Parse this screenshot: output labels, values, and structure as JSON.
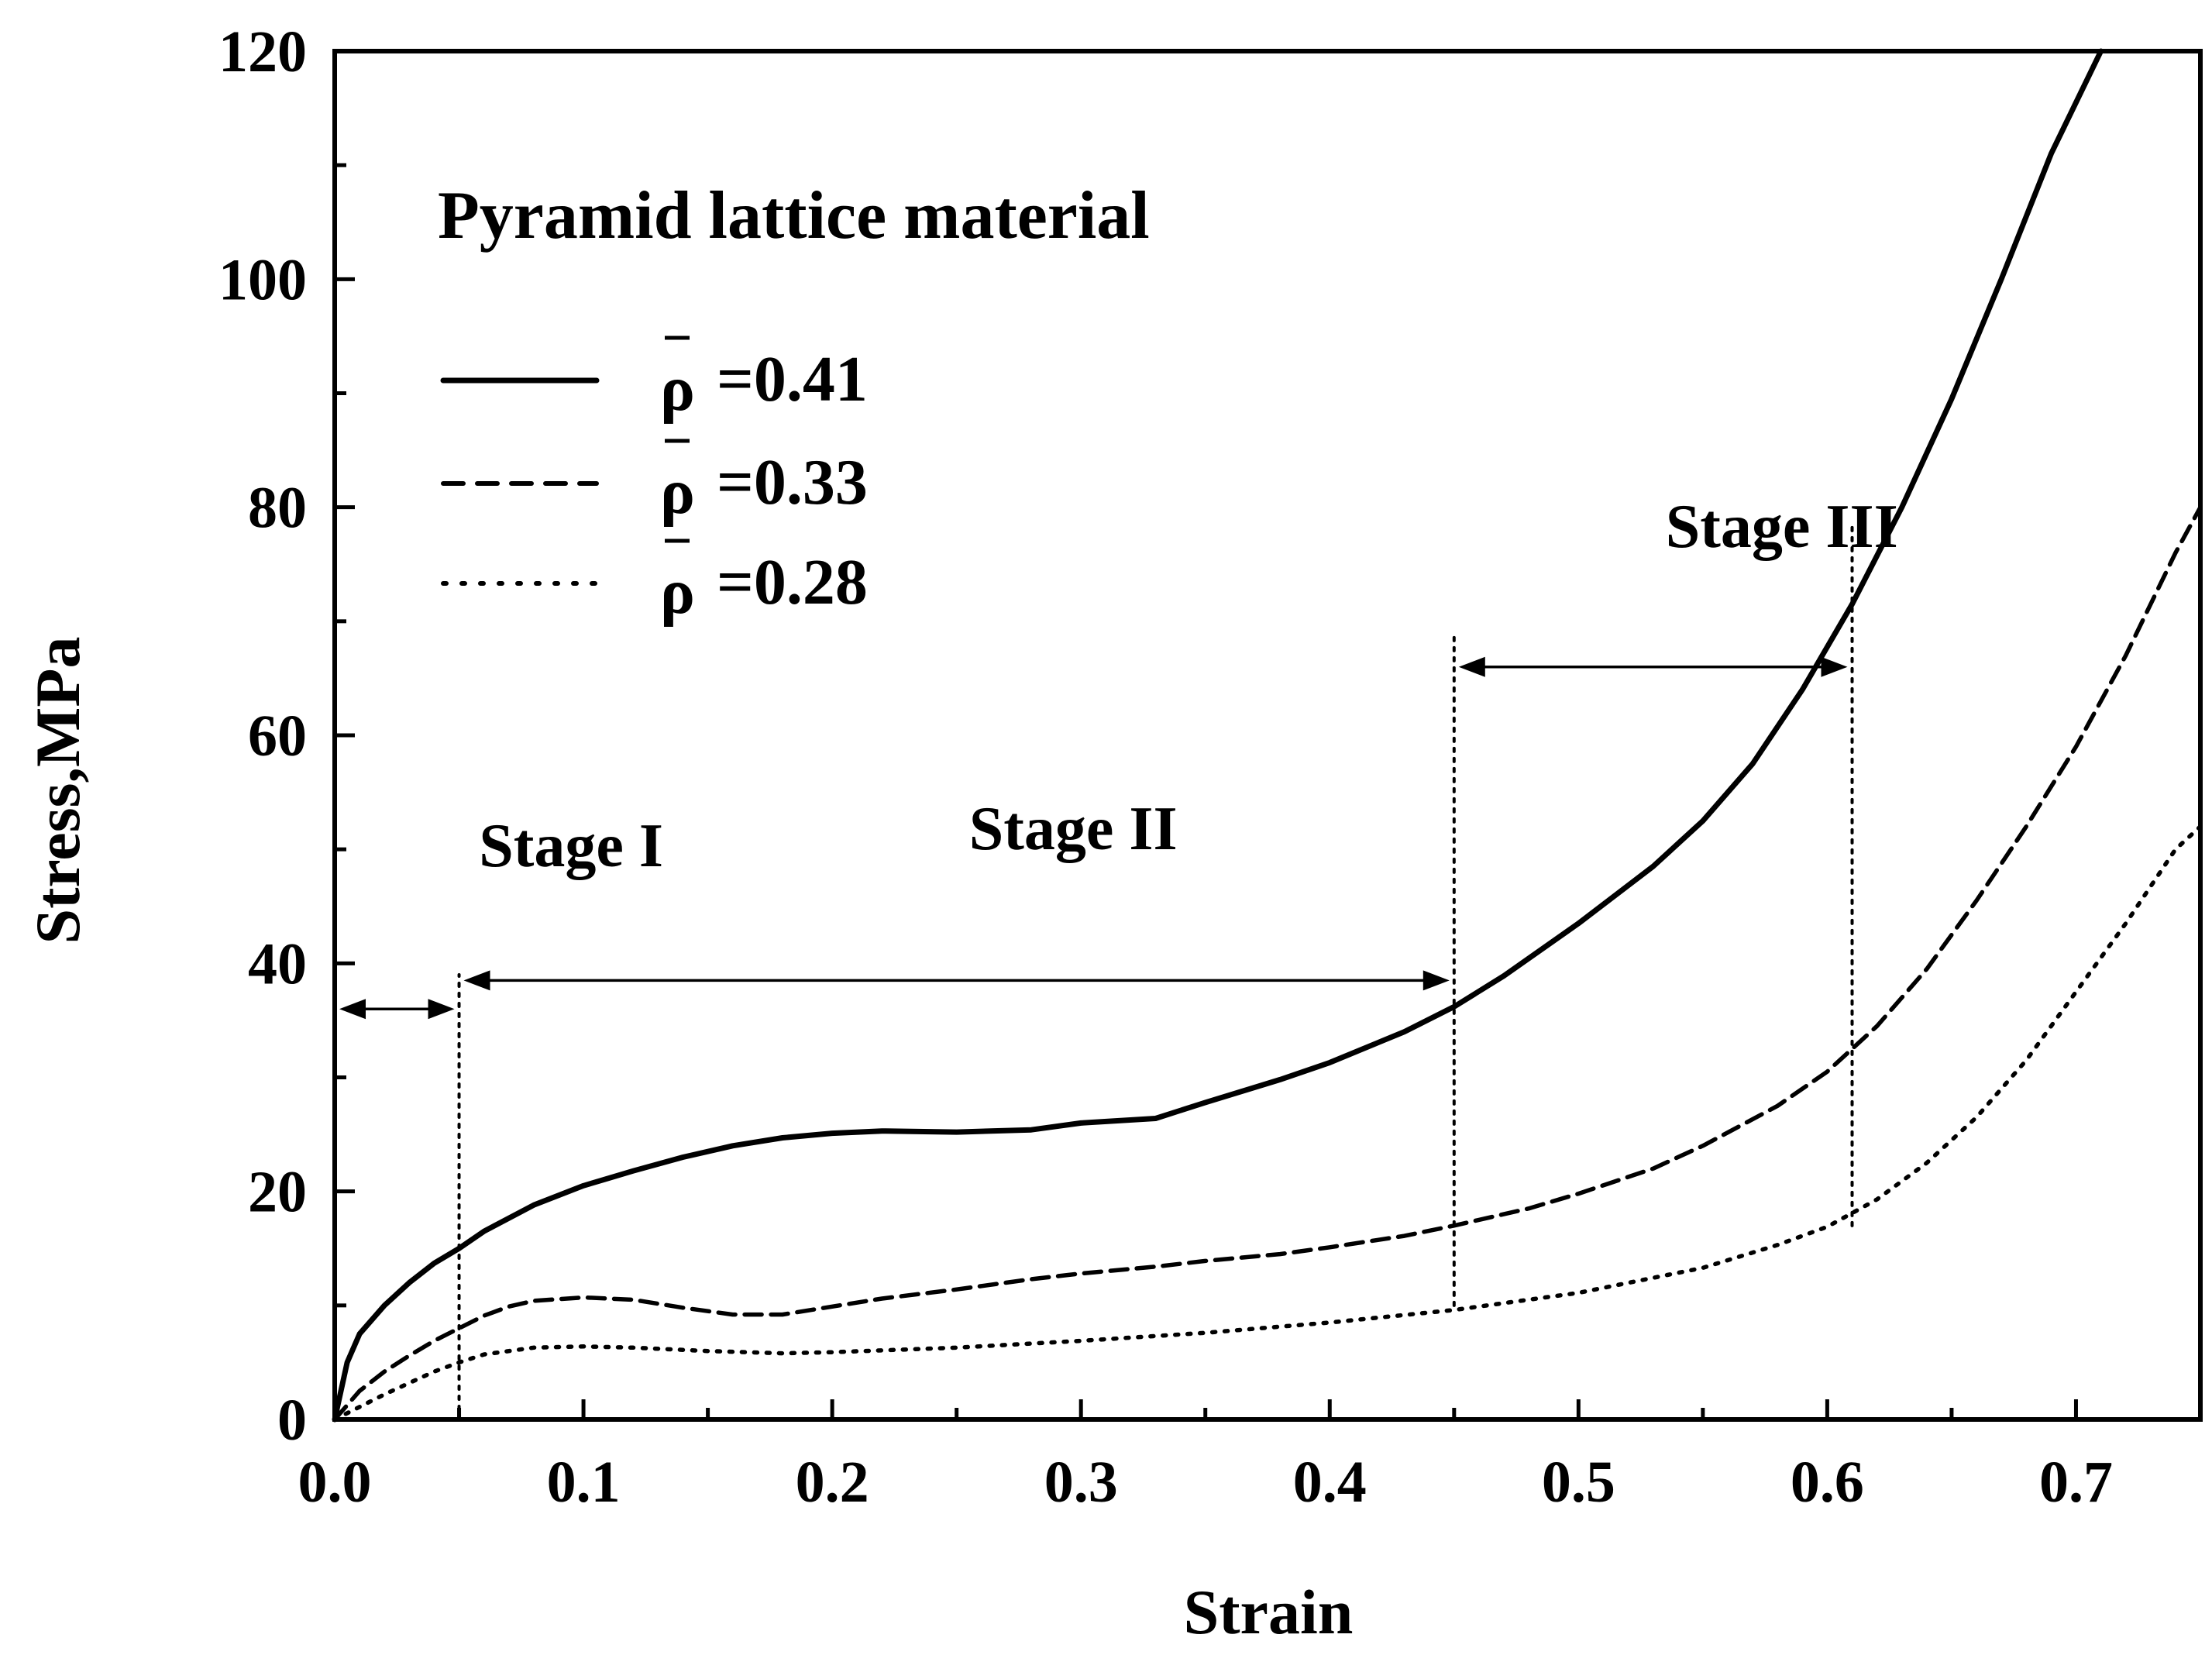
{
  "chart_data": {
    "type": "line",
    "title": "Pyramid  lattice material",
    "xlabel": "Strain",
    "ylabel": "Stress,MPa",
    "xlim": [
      0,
      0.75
    ],
    "ylim": [
      0,
      120
    ],
    "xticks": [
      0.0,
      0.1,
      0.2,
      0.3,
      0.4,
      0.5,
      0.6,
      0.7
    ],
    "xtick_labels": [
      "0.0",
      "0.1",
      "0.2",
      "0.3",
      "0.4",
      "0.5",
      "0.6",
      "0.7"
    ],
    "xminor_step": 0.05,
    "yticks": [
      0,
      20,
      40,
      60,
      80,
      100,
      120
    ],
    "ytick_labels": [
      "0",
      "20",
      "40",
      "60",
      "80",
      "100",
      "120"
    ],
    "yminor_step": 10,
    "legend_position": "upper-left",
    "series": [
      {
        "name": "ρ̄ =0.41",
        "legend_symbol": "ρ",
        "legend_value": "=0.41",
        "style": "solid",
        "points": [
          [
            0,
            0
          ],
          [
            0.005,
            5
          ],
          [
            0.01,
            7.5
          ],
          [
            0.02,
            10
          ],
          [
            0.03,
            12
          ],
          [
            0.04,
            13.7
          ],
          [
            0.05,
            15
          ],
          [
            0.06,
            16.5
          ],
          [
            0.08,
            18.8
          ],
          [
            0.1,
            20.5
          ],
          [
            0.12,
            21.8
          ],
          [
            0.14,
            23
          ],
          [
            0.16,
            24
          ],
          [
            0.18,
            24.7
          ],
          [
            0.2,
            25.1
          ],
          [
            0.22,
            25.3
          ],
          [
            0.25,
            25.2
          ],
          [
            0.28,
            25.4
          ],
          [
            0.3,
            26
          ],
          [
            0.33,
            26.4
          ],
          [
            0.35,
            27.8
          ],
          [
            0.38,
            29.8
          ],
          [
            0.4,
            31.3
          ],
          [
            0.43,
            34
          ],
          [
            0.45,
            36.2
          ],
          [
            0.47,
            38.9
          ],
          [
            0.5,
            43.5
          ],
          [
            0.53,
            48.5
          ],
          [
            0.55,
            52.5
          ],
          [
            0.57,
            57.5
          ],
          [
            0.59,
            64
          ],
          [
            0.61,
            71.5
          ],
          [
            0.63,
            80
          ],
          [
            0.65,
            89.5
          ],
          [
            0.67,
            100
          ],
          [
            0.69,
            111
          ],
          [
            0.71,
            120
          ]
        ]
      },
      {
        "name": "ρ̄ =0.33",
        "legend_symbol": "ρ",
        "legend_value": "=0.33",
        "style": "dashed",
        "points": [
          [
            0,
            0
          ],
          [
            0.01,
            2.5
          ],
          [
            0.02,
            4.2
          ],
          [
            0.03,
            5.6
          ],
          [
            0.04,
            6.9
          ],
          [
            0.05,
            8
          ],
          [
            0.06,
            9.1
          ],
          [
            0.07,
            9.9
          ],
          [
            0.08,
            10.4
          ],
          [
            0.1,
            10.7
          ],
          [
            0.12,
            10.5
          ],
          [
            0.14,
            9.8
          ],
          [
            0.16,
            9.2
          ],
          [
            0.18,
            9.2
          ],
          [
            0.2,
            9.9
          ],
          [
            0.22,
            10.6
          ],
          [
            0.25,
            11.4
          ],
          [
            0.28,
            12.3
          ],
          [
            0.3,
            12.8
          ],
          [
            0.33,
            13.4
          ],
          [
            0.35,
            13.9
          ],
          [
            0.38,
            14.5
          ],
          [
            0.4,
            15.1
          ],
          [
            0.43,
            16.1
          ],
          [
            0.45,
            17
          ],
          [
            0.48,
            18.5
          ],
          [
            0.5,
            19.8
          ],
          [
            0.53,
            22
          ],
          [
            0.55,
            24
          ],
          [
            0.58,
            27.5
          ],
          [
            0.6,
            30.5
          ],
          [
            0.62,
            34.5
          ],
          [
            0.64,
            39.5
          ],
          [
            0.66,
            45.5
          ],
          [
            0.68,
            52
          ],
          [
            0.7,
            59
          ],
          [
            0.72,
            67
          ],
          [
            0.74,
            76
          ],
          [
            0.75,
            80
          ]
        ]
      },
      {
        "name": "ρ̄ =0.28",
        "legend_symbol": "ρ",
        "legend_value": "=0.28",
        "style": "dotted",
        "points": [
          [
            0,
            0
          ],
          [
            0.02,
            2.2
          ],
          [
            0.04,
            4.2
          ],
          [
            0.05,
            5
          ],
          [
            0.06,
            5.7
          ],
          [
            0.08,
            6.3
          ],
          [
            0.1,
            6.4
          ],
          [
            0.12,
            6.3
          ],
          [
            0.15,
            6
          ],
          [
            0.18,
            5.8
          ],
          [
            0.2,
            5.9
          ],
          [
            0.25,
            6.3
          ],
          [
            0.3,
            6.9
          ],
          [
            0.35,
            7.6
          ],
          [
            0.4,
            8.5
          ],
          [
            0.45,
            9.6
          ],
          [
            0.5,
            11.1
          ],
          [
            0.55,
            13.3
          ],
          [
            0.58,
            15.3
          ],
          [
            0.6,
            16.9
          ],
          [
            0.62,
            19.3
          ],
          [
            0.64,
            22.5
          ],
          [
            0.66,
            26.5
          ],
          [
            0.68,
            31.5
          ],
          [
            0.7,
            37.5
          ],
          [
            0.72,
            43.5
          ],
          [
            0.74,
            50
          ],
          [
            0.75,
            52
          ]
        ]
      }
    ],
    "stage_boundaries": [
      0.05,
      0.45,
      0.61
    ],
    "annotations": [
      {
        "label": "Stage I",
        "x_from": 0.0,
        "x_to": 0.05,
        "arrow_y": 36,
        "text_x": 0.058,
        "text_y": 48.5
      },
      {
        "label": "Stage II",
        "x_from": 0.05,
        "x_to": 0.45,
        "arrow_y": 38.5,
        "text_x": 0.255,
        "text_y": 50
      },
      {
        "label": "Stage III",
        "x_from": 0.45,
        "x_to": 0.61,
        "arrow_y": 66,
        "text_x": 0.535,
        "text_y": 76.5
      }
    ],
    "boundary_lines": [
      {
        "x": 0.05,
        "y_from": 0,
        "y_to": 39
      },
      {
        "x": 0.45,
        "y_from": 10,
        "y_to": 69
      },
      {
        "x": 0.61,
        "y_from": 17,
        "y_to": 78.5
      }
    ]
  }
}
